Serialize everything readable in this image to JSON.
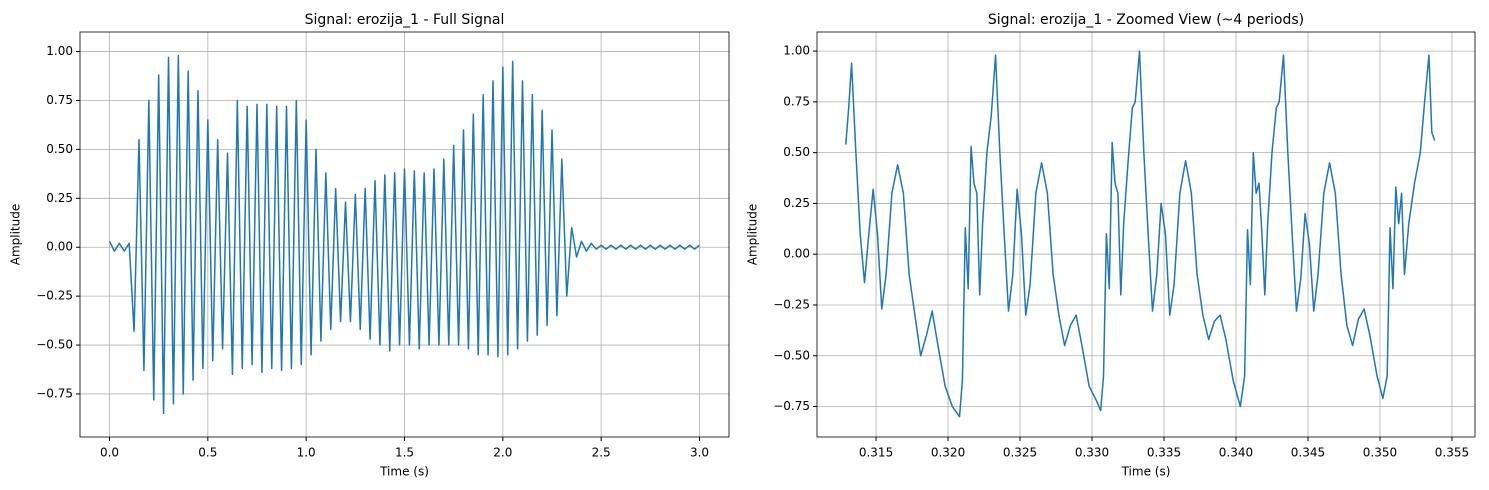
{
  "chart_data": [
    {
      "type": "line",
      "title": "Signal: erozija_1 - Full Signal",
      "xlabel": "Time (s)",
      "ylabel": "Amplitude",
      "color": "#1f77b4",
      "grid": true,
      "xlim": [
        -0.15,
        3.15
      ],
      "ylim": [
        -0.97,
        1.1
      ],
      "xticks": [
        {
          "value": 0,
          "label": "0.0"
        },
        0.5,
        {
          "value": 1,
          "label": "1.0"
        },
        1.5,
        {
          "value": 2,
          "label": "2.0"
        },
        2.5,
        {
          "value": 3,
          "label": "3.0"
        }
      ],
      "yticks": [
        {
          "value": -0.75,
          "label": "−0.75"
        },
        {
          "value": -0.5,
          "label": "−0.50"
        },
        {
          "value": -0.25,
          "label": "−0.25"
        },
        {
          "value": 0,
          "label": "0.00"
        },
        0.25,
        {
          "value": 0.5,
          "label": "0.50"
        },
        0.75,
        {
          "value": 1,
          "label": "1.00"
        }
      ],
      "x": [
        0,
        0.025,
        0.05,
        0.075,
        0.1,
        0.125,
        0.15,
        0.175,
        0.2,
        0.225,
        0.25,
        0.275,
        0.3,
        0.325,
        0.35,
        0.375,
        0.4,
        0.425,
        0.45,
        0.475,
        0.5,
        0.525,
        0.55,
        0.575,
        0.6,
        0.625,
        0.65,
        0.675,
        0.7,
        0.725,
        0.75,
        0.775,
        0.8,
        0.825,
        0.85,
        0.875,
        0.9,
        0.925,
        0.95,
        0.975,
        1,
        1.025,
        1.05,
        1.075,
        1.1,
        1.125,
        1.15,
        1.175,
        1.2,
        1.225,
        1.25,
        1.275,
        1.3,
        1.325,
        1.35,
        1.375,
        1.4,
        1.425,
        1.45,
        1.475,
        1.5,
        1.525,
        1.55,
        1.575,
        1.6,
        1.625,
        1.65,
        1.675,
        1.7,
        1.725,
        1.75,
        1.775,
        1.8,
        1.825,
        1.85,
        1.875,
        1.9,
        1.925,
        1.95,
        1.975,
        2,
        2.025,
        2.05,
        2.075,
        2.1,
        2.125,
        2.15,
        2.175,
        2.2,
        2.225,
        2.25,
        2.275,
        2.3,
        2.325,
        2.35,
        2.375,
        2.4,
        2.425,
        2.45,
        2.475,
        2.5,
        2.525,
        2.55,
        2.575,
        2.6,
        2.625,
        2.65,
        2.675,
        2.7,
        2.725,
        2.75,
        2.775,
        2.8,
        2.825,
        2.85,
        2.875,
        2.9,
        2.925,
        2.95,
        2.975,
        3
      ],
      "values": [
        0.03,
        -0.02,
        0.02,
        -0.02,
        0.02,
        -0.43,
        0.55,
        -0.63,
        0.75,
        -0.78,
        0.88,
        -0.85,
        0.97,
        -0.8,
        0.98,
        -0.75,
        0.9,
        -0.68,
        0.8,
        -0.62,
        0.65,
        -0.58,
        0.55,
        -0.52,
        0.48,
        -0.65,
        0.75,
        -0.62,
        0.72,
        -0.6,
        0.73,
        -0.64,
        0.73,
        -0.62,
        0.72,
        -0.63,
        0.72,
        -0.62,
        0.75,
        -0.6,
        0.65,
        -0.55,
        0.5,
        -0.48,
        0.38,
        -0.42,
        0.3,
        -0.38,
        0.23,
        -0.38,
        0.27,
        -0.42,
        0.3,
        -0.47,
        0.34,
        -0.5,
        0.37,
        -0.53,
        0.38,
        -0.5,
        0.4,
        -0.5,
        0.39,
        -0.52,
        0.38,
        -0.5,
        0.4,
        -0.5,
        0.45,
        -0.5,
        0.52,
        -0.5,
        0.6,
        -0.52,
        0.68,
        -0.55,
        0.78,
        -0.55,
        0.85,
        -0.56,
        0.92,
        -0.55,
        0.95,
        -0.52,
        0.85,
        -0.48,
        0.78,
        -0.45,
        0.7,
        -0.4,
        0.6,
        -0.35,
        0.45,
        -0.25,
        0.1,
        -0.05,
        0.03,
        -0.02,
        0.02,
        -0.01,
        0.01,
        -0.01,
        0.01,
        -0.01,
        0.01,
        -0.01,
        0.01,
        -0.01,
        0.01,
        -0.01,
        0.01,
        -0.01,
        0.01,
        -0.01,
        0.01,
        -0.01,
        0.01,
        -0.01,
        0.01,
        -0.01,
        0.01
      ]
    },
    {
      "type": "line",
      "title": "Signal: erozija_1 - Zoomed View (~4 periods)",
      "xlabel": "Time (s)",
      "ylabel": "Amplitude",
      "color": "#1f77b4",
      "grid": true,
      "xlim": [
        0.3109,
        0.3566
      ],
      "ylim": [
        -0.9,
        1.094
      ],
      "xticks": [
        0.315,
        {
          "value": 0.32,
          "label": "0.320"
        },
        0.325,
        {
          "value": 0.33,
          "label": "0.330"
        },
        0.335,
        {
          "value": 0.34,
          "label": "0.340"
        },
        0.345,
        {
          "value": 0.35,
          "label": "0.350"
        },
        0.355
      ],
      "yticks": [
        {
          "value": -0.75,
          "label": "−0.75"
        },
        {
          "value": -0.5,
          "label": "−0.50"
        },
        {
          "value": -0.25,
          "label": "−0.25"
        },
        {
          "value": 0,
          "label": "0.00"
        },
        0.25,
        {
          "value": 0.5,
          "label": "0.50"
        },
        0.75,
        {
          "value": 1,
          "label": "1.00"
        }
      ],
      "x": [
        0.3129,
        0.3131,
        0.3133,
        0.3136,
        0.3139,
        0.3142,
        0.3145,
        0.3148,
        0.3151,
        0.3154,
        0.3157,
        0.3161,
        0.3165,
        0.3169,
        0.3173,
        0.3177,
        0.3181,
        0.3185,
        0.3189,
        0.3193,
        0.3198,
        0.3203,
        0.3208,
        0.321,
        0.3212,
        0.3214,
        0.3216,
        0.3218,
        0.322,
        0.3222,
        0.3224,
        0.3227,
        0.323,
        0.3233,
        0.3236,
        0.3239,
        0.3242,
        0.3245,
        0.3248,
        0.3251,
        0.3254,
        0.3257,
        0.3261,
        0.3265,
        0.3269,
        0.3273,
        0.3277,
        0.3281,
        0.3285,
        0.3289,
        0.3293,
        0.3298,
        0.3303,
        0.3306,
        0.3308,
        0.331,
        0.3312,
        0.3314,
        0.3316,
        0.3318,
        0.332,
        0.3322,
        0.3325,
        0.3328,
        0.333,
        0.3333,
        0.3336,
        0.3339,
        0.3342,
        0.3345,
        0.3348,
        0.3351,
        0.3354,
        0.3357,
        0.3361,
        0.3365,
        0.3369,
        0.3373,
        0.3377,
        0.3381,
        0.3385,
        0.3389,
        0.3393,
        0.3398,
        0.3403,
        0.3406,
        0.3408,
        0.341,
        0.3412,
        0.3414,
        0.3416,
        0.3418,
        0.342,
        0.3422,
        0.3425,
        0.3428,
        0.343,
        0.3433,
        0.3436,
        0.3439,
        0.3442,
        0.3445,
        0.3448,
        0.3451,
        0.3454,
        0.3457,
        0.3461,
        0.3465,
        0.3469,
        0.3473,
        0.3477,
        0.3481,
        0.3485,
        0.3489,
        0.3493,
        0.3498,
        0.3502,
        0.3505,
        0.3507,
        0.3509,
        0.3511,
        0.3513,
        0.3515,
        0.3517,
        0.352,
        0.3524,
        0.3528,
        0.3531,
        0.3534,
        0.3536,
        0.3538
      ],
      "values": [
        0.54,
        0.72,
        0.94,
        0.5,
        0.1,
        -0.14,
        0.1,
        0.32,
        0.1,
        -0.27,
        -0.1,
        0.3,
        0.44,
        0.3,
        -0.1,
        -0.3,
        -0.5,
        -0.4,
        -0.28,
        -0.45,
        -0.65,
        -0.75,
        -0.8,
        -0.62,
        0.13,
        -0.17,
        0.53,
        0.35,
        0.3,
        -0.2,
        0.15,
        0.5,
        0.68,
        0.98,
        0.5,
        0.1,
        -0.28,
        -0.1,
        0.32,
        0.1,
        -0.3,
        -0.15,
        0.3,
        0.45,
        0.3,
        -0.1,
        -0.3,
        -0.45,
        -0.35,
        -0.3,
        -0.45,
        -0.65,
        -0.72,
        -0.77,
        -0.6,
        0.1,
        -0.17,
        0.55,
        0.35,
        0.3,
        -0.2,
        0.15,
        0.45,
        0.72,
        0.75,
        1.0,
        0.5,
        0.1,
        -0.28,
        -0.1,
        0.25,
        0.1,
        -0.3,
        -0.15,
        0.3,
        0.46,
        0.3,
        -0.1,
        -0.3,
        -0.42,
        -0.33,
        -0.3,
        -0.42,
        -0.62,
        -0.75,
        -0.6,
        0.12,
        -0.15,
        0.5,
        0.3,
        0.35,
        0.1,
        -0.2,
        0.15,
        0.5,
        0.72,
        0.75,
        0.98,
        0.5,
        0.1,
        -0.28,
        -0.12,
        0.2,
        0.05,
        -0.28,
        -0.1,
        0.3,
        0.45,
        0.3,
        -0.1,
        -0.35,
        -0.45,
        -0.32,
        -0.27,
        -0.4,
        -0.6,
        -0.71,
        -0.6,
        0.13,
        -0.17,
        0.33,
        0.15,
        0.3,
        -0.1,
        0.15,
        0.35,
        0.5,
        0.75,
        0.98,
        0.6,
        0.56
      ]
    }
  ]
}
